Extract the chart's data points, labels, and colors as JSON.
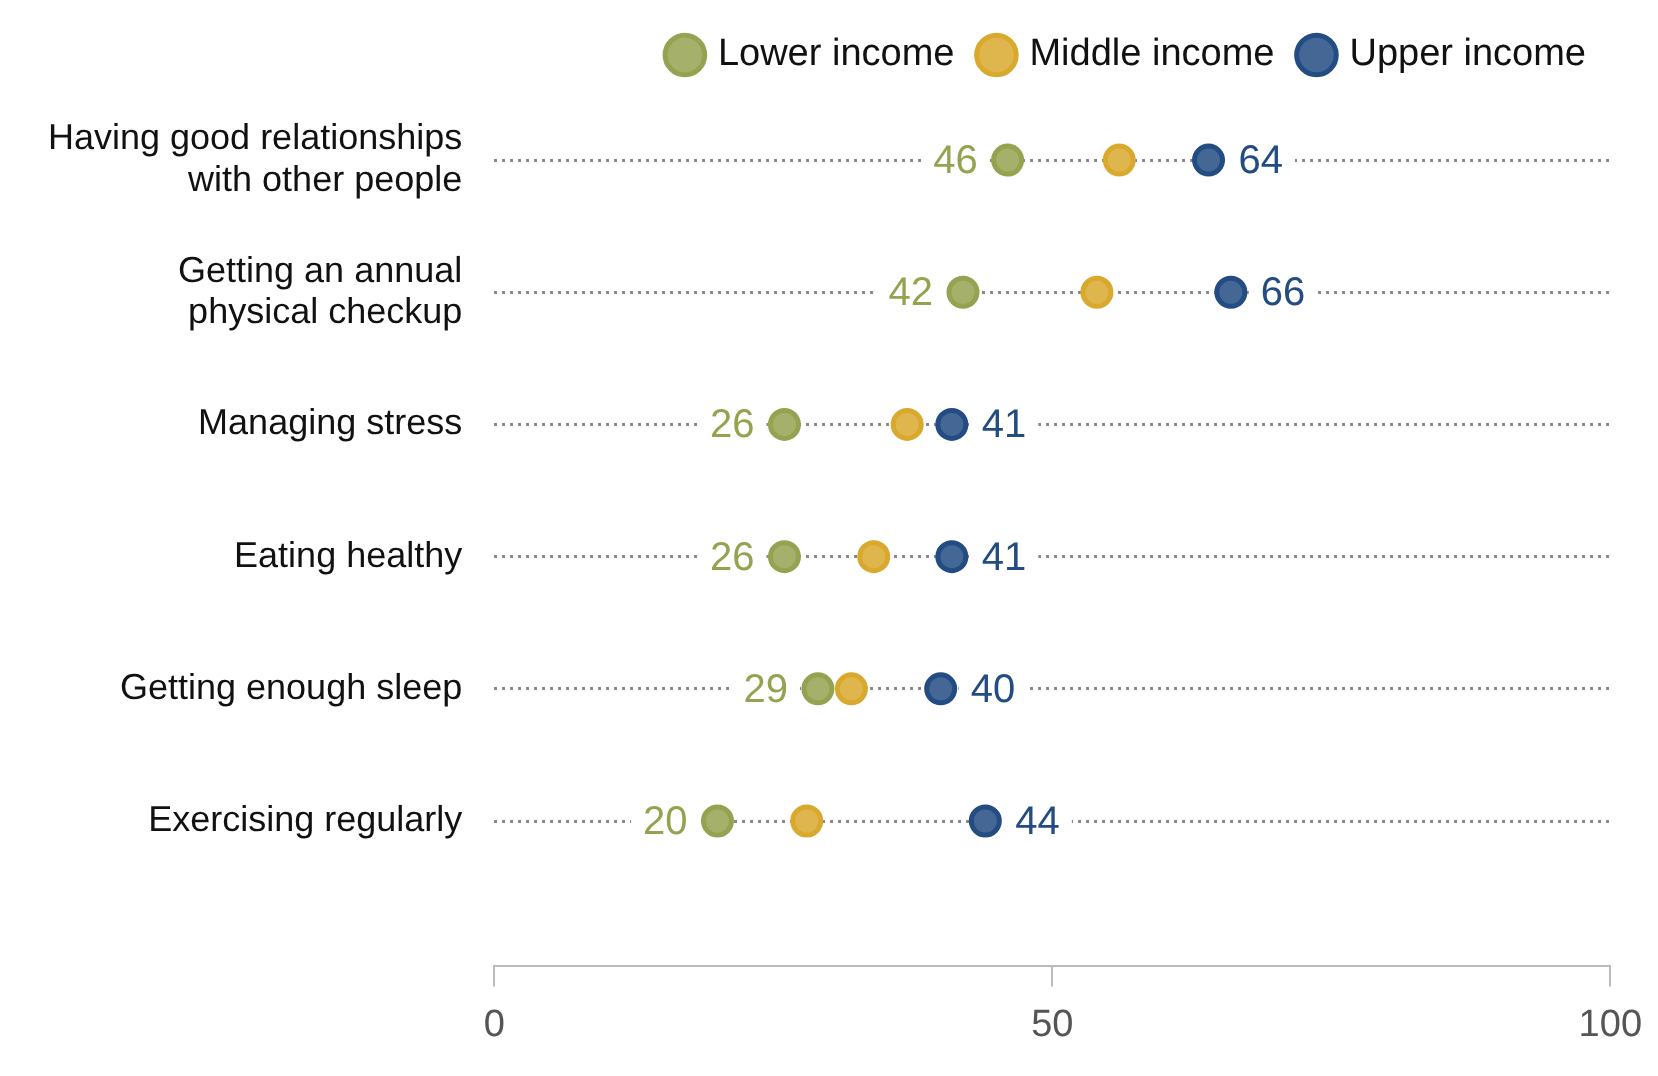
{
  "chart_data": {
    "type": "scatter",
    "categories": [
      "Having good relationships with other people",
      "Getting an annual physical checkup",
      "Managing stress",
      "Eating healthy",
      "Getting enough sleep",
      "Exercising regularly"
    ],
    "series": [
      {
        "name": "Lower income",
        "color": "#95a351",
        "values": [
          46,
          42,
          26,
          26,
          29,
          20
        ],
        "value_labels": [
          "46",
          "42",
          "26",
          "26",
          "29",
          "20"
        ]
      },
      {
        "name": "Middle income",
        "color": "#d9a92e",
        "values": [
          56,
          54,
          37,
          34,
          32,
          28
        ]
      },
      {
        "name": "Upper income",
        "color": "#234c82",
        "values": [
          64,
          66,
          41,
          41,
          40,
          44
        ],
        "value_labels": [
          "64",
          "66",
          "41",
          "41",
          "40",
          "44"
        ]
      }
    ],
    "orientation": "horizontal",
    "xlim": [
      0,
      100
    ],
    "xticks": [
      0,
      50,
      100
    ],
    "grid": "y",
    "legend": "top right",
    "marker": "circle"
  }
}
